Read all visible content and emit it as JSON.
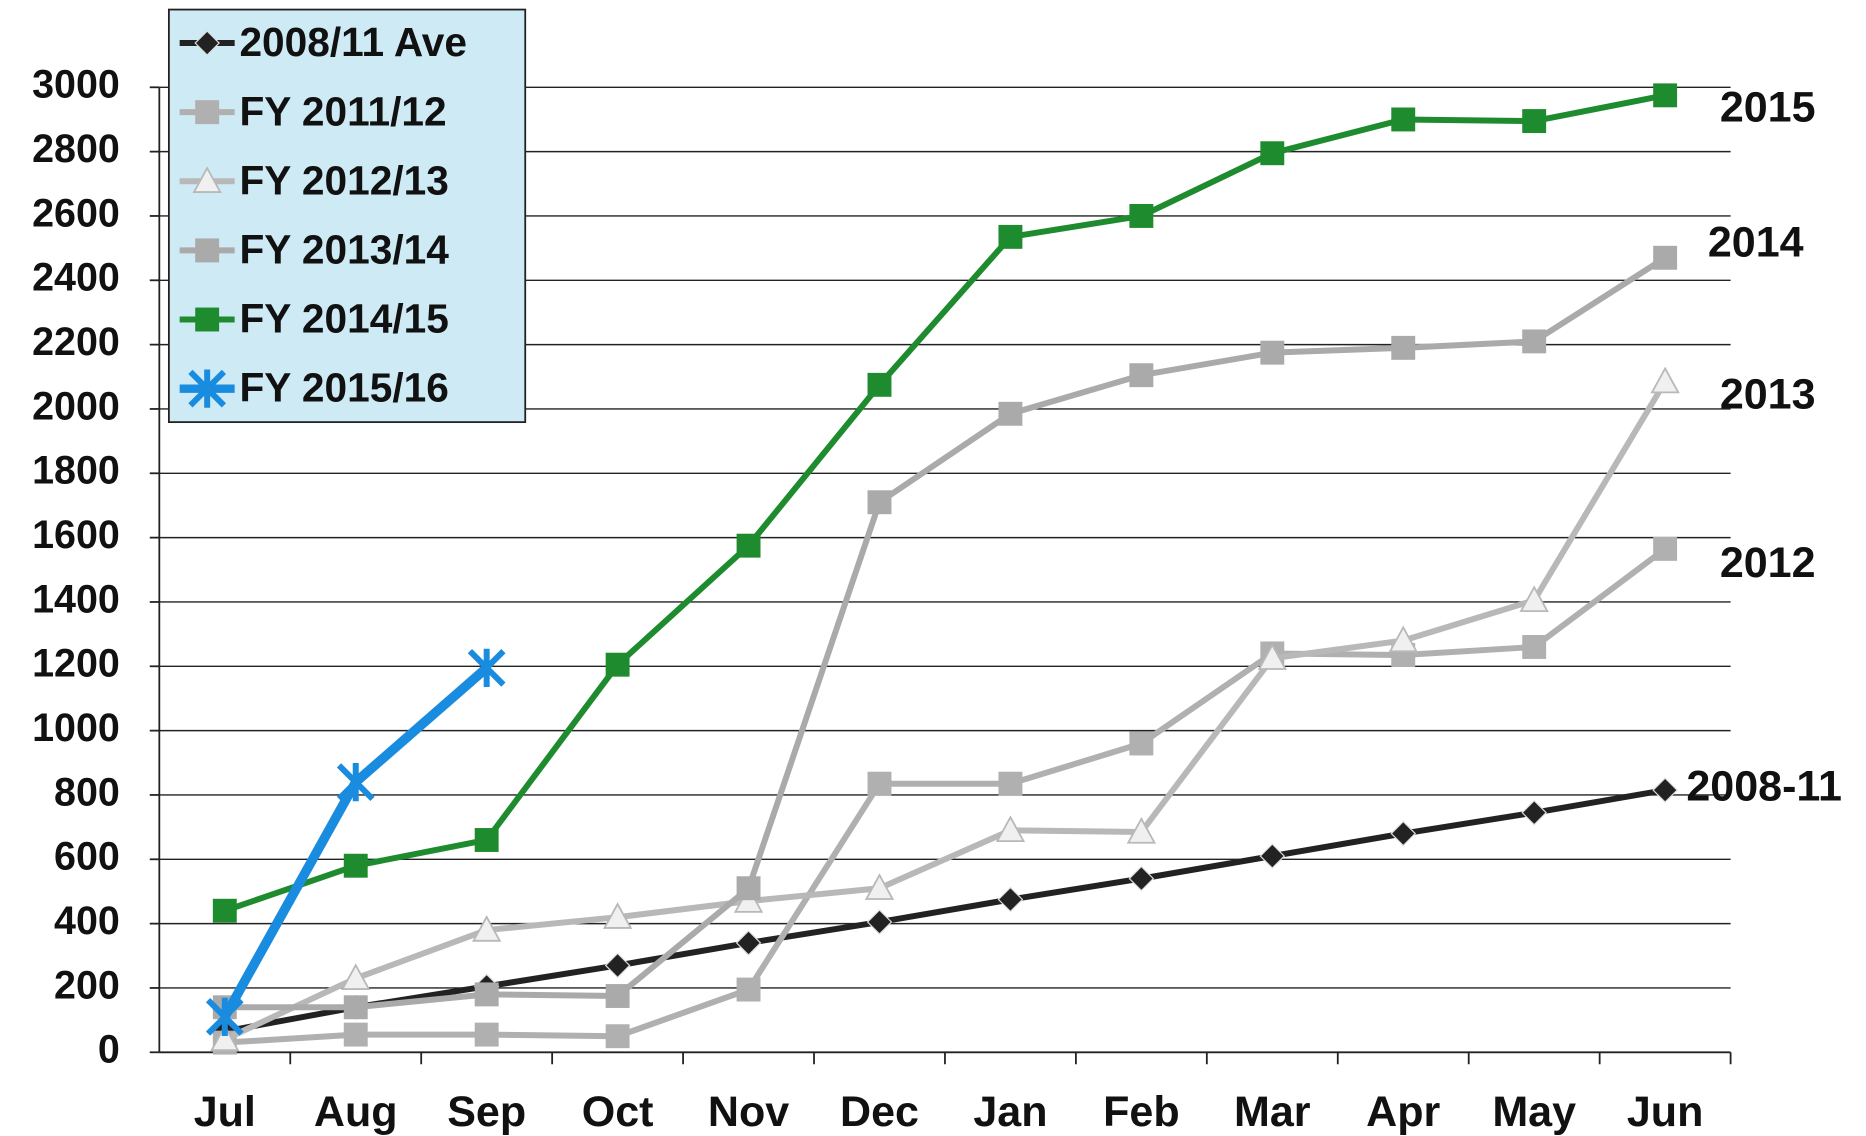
{
  "chart_data": {
    "type": "line",
    "categories": [
      "Jul",
      "Aug",
      "Sep",
      "Oct",
      "Nov",
      "Dec",
      "Jan",
      "Feb",
      "Mar",
      "Apr",
      "May",
      "Jun"
    ],
    "series": [
      {
        "name": "2008/11 Ave",
        "color": "#222222",
        "marker": "diamond",
        "values": [
          65,
          140,
          205,
          270,
          340,
          405,
          475,
          540,
          610,
          680,
          745,
          815
        ]
      },
      {
        "name": "FY 2011/12",
        "color": "#b0b0b0",
        "marker": "square",
        "values": [
          30,
          55,
          55,
          50,
          195,
          835,
          835,
          960,
          1240,
          1235,
          1260,
          1565
        ]
      },
      {
        "name": "FY 2012/13",
        "color": "#b8b8b8",
        "marker": "triangle",
        "values": [
          40,
          230,
          380,
          420,
          470,
          510,
          690,
          685,
          1225,
          1280,
          1405,
          2085
        ]
      },
      {
        "name": "FY 2013/14",
        "color": "#aaaaaa",
        "marker": "square",
        "values": [
          140,
          140,
          180,
          175,
          510,
          1710,
          1985,
          2105,
          2175,
          2190,
          2210,
          2470
        ]
      },
      {
        "name": "FY 2014/15",
        "color": "#1e8c2e",
        "marker": "square",
        "values": [
          440,
          580,
          660,
          1205,
          1575,
          2075,
          2535,
          2600,
          2795,
          2900,
          2895,
          2975
        ]
      },
      {
        "name": "FY 2015/16",
        "color": "#1a8ce0",
        "marker": "star",
        "values": [
          110,
          840,
          1195,
          null,
          null,
          null,
          null,
          null,
          null,
          null,
          null,
          null
        ]
      }
    ],
    "annotations": [
      "2015",
      "2014",
      "2013",
      "2012",
      "2008-11"
    ],
    "ylim": [
      0,
      3000
    ],
    "yticks": [
      0,
      200,
      400,
      600,
      800,
      1000,
      1200,
      1400,
      1600,
      1800,
      2000,
      2200,
      2400,
      2600,
      2800,
      3000
    ],
    "grid": true,
    "legend": "top-left"
  }
}
